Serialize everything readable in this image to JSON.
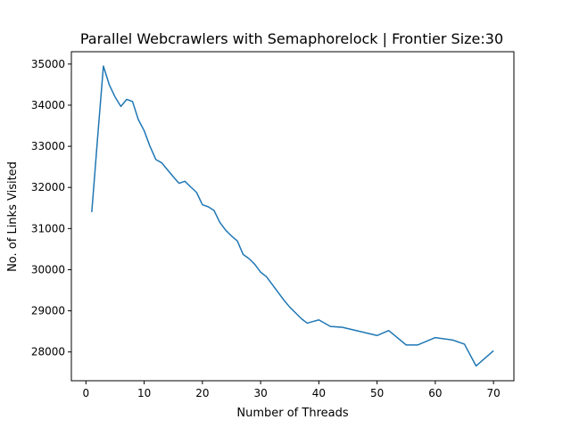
{
  "chart_data": {
    "type": "line",
    "title": "Parallel Webcrawlers with Semaphorelock | Frontier Size:30",
    "xlabel": "Number of Threads",
    "ylabel": "No. of Links Visited",
    "xlim": [
      -2.5,
      73.5
    ],
    "ylim": [
      27300,
      35300
    ],
    "xticks": [
      0,
      10,
      20,
      30,
      40,
      50,
      60,
      70
    ],
    "yticks": [
      28000,
      29000,
      30000,
      31000,
      32000,
      33000,
      34000,
      35000
    ],
    "grid": false,
    "series": [
      {
        "color": "#1f77b4",
        "x": [
          1,
          2,
          3,
          4,
          5,
          6,
          7,
          8,
          9,
          10,
          11,
          12,
          13,
          14,
          15,
          16,
          17,
          18,
          19,
          20,
          21,
          22,
          23,
          24,
          25,
          26,
          27,
          28,
          29,
          30,
          31,
          32,
          33,
          34,
          35,
          36,
          37,
          38,
          39,
          40,
          42,
          44,
          50,
          52,
          55,
          57,
          60,
          63,
          65,
          67,
          70
        ],
        "y": [
          31400,
          33200,
          34950,
          34500,
          34200,
          33970,
          34140,
          34090,
          33650,
          33380,
          33000,
          32680,
          32600,
          32430,
          32260,
          32100,
          32150,
          32010,
          31880,
          31580,
          31530,
          31440,
          31150,
          30960,
          30820,
          30700,
          30370,
          30270,
          30130,
          29940,
          29830,
          29640,
          29450,
          29260,
          29090,
          28950,
          28810,
          28700,
          28740,
          28780,
          28620,
          28600,
          28400,
          28520,
          28170,
          28170,
          28350,
          28290,
          28190,
          27660,
          28030
        ]
      }
    ]
  }
}
